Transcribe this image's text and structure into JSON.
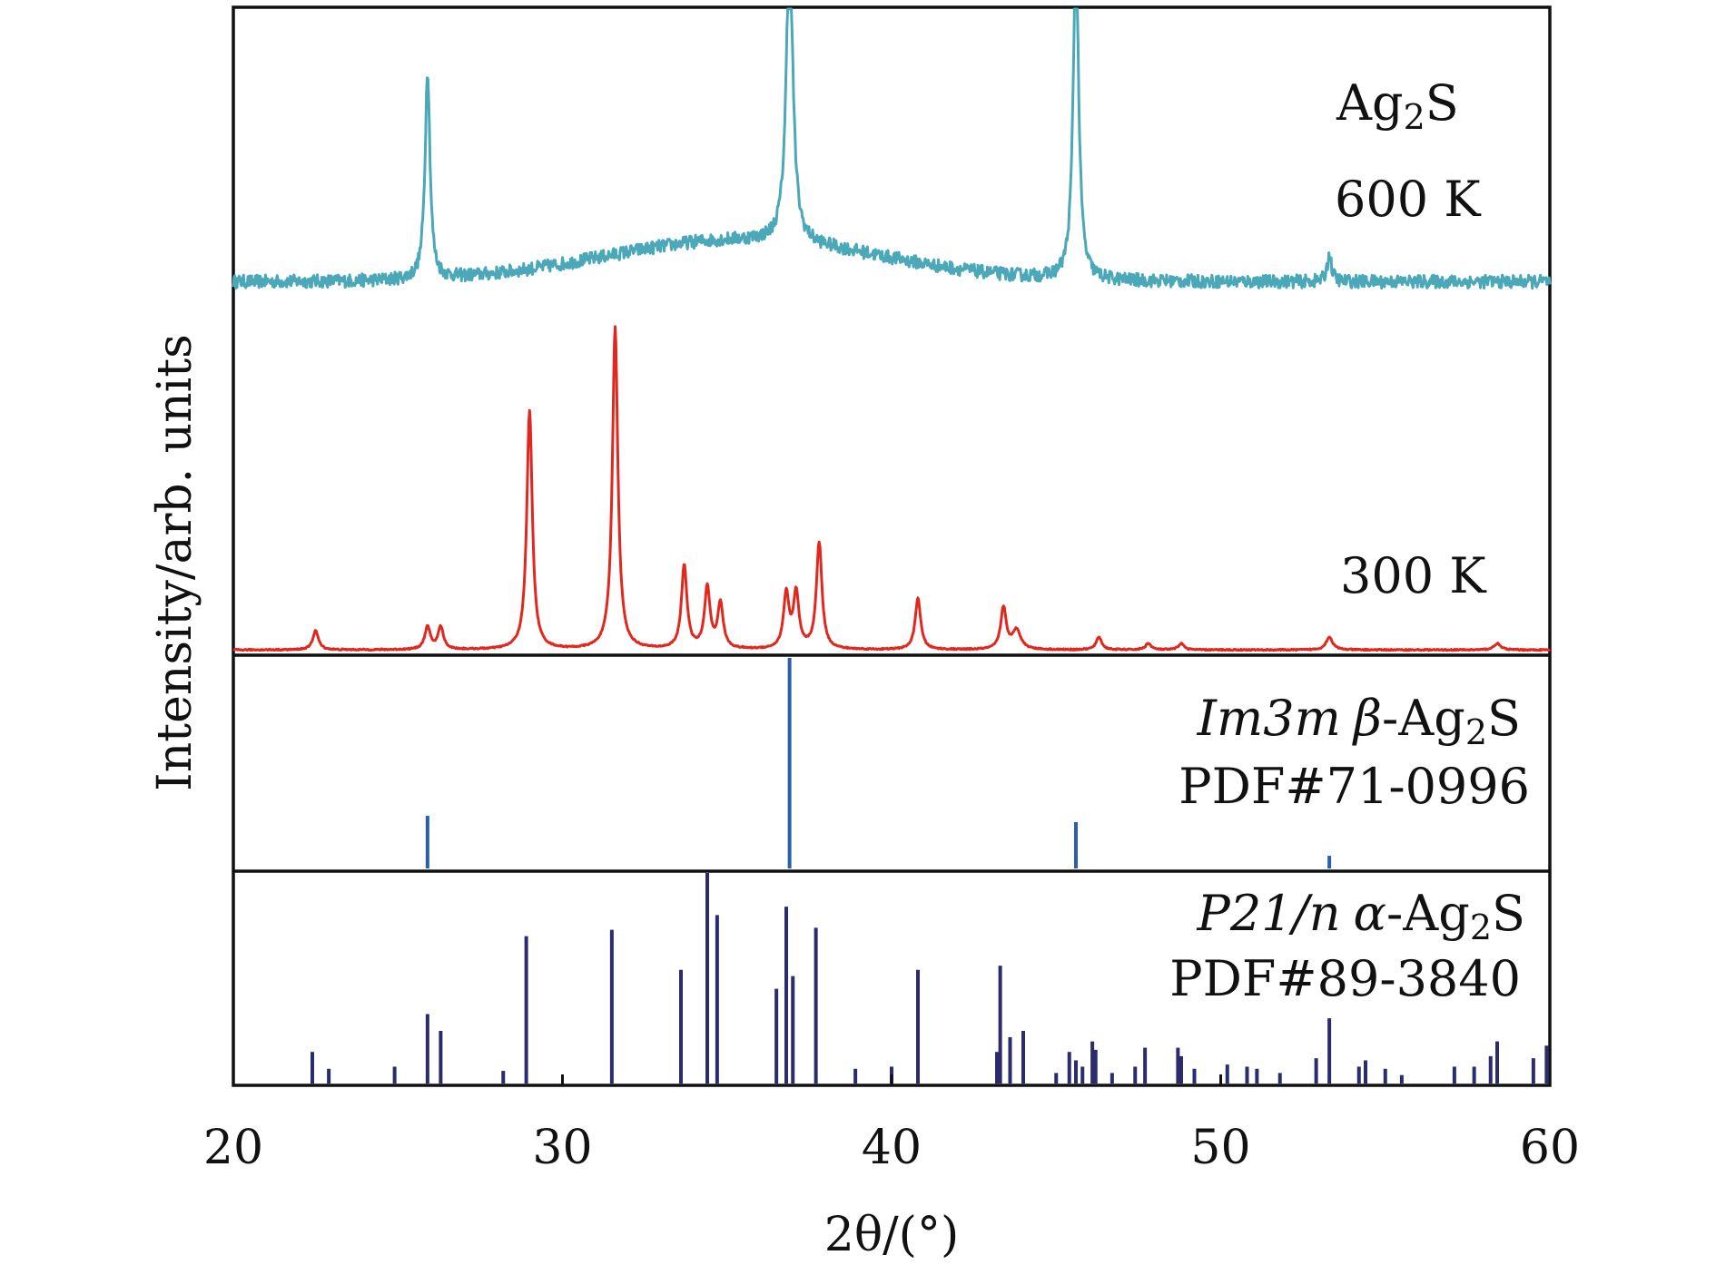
{
  "chart_data": {
    "type": "line",
    "xlabel": "2θ/(°)",
    "ylabel": "Intensity/arb. units",
    "xlim": [
      20,
      60
    ],
    "xticks": [
      20,
      30,
      40,
      50,
      60
    ],
    "grid": false,
    "colors": {
      "trace_600K": "#4aa8b8",
      "trace_300K": "#e0281e",
      "ref_beta": "#2a5fae",
      "ref_alpha": "#2b2b6e"
    },
    "annotations": {
      "compound_base": "Ag",
      "compound_sub": "2",
      "compound_end": "S",
      "temp_600": "600  K",
      "temp_300": "300  K",
      "beta_phase_ital": "Im3m",
      "beta_greek": "β",
      "beta_formula_base": "-Ag",
      "beta_formula_sub": "2",
      "beta_formula_end": "S",
      "beta_pdf": "PDF#71-0996",
      "alpha_phase_ital": "P21/n",
      "alpha_greek": "α",
      "alpha_formula_base": "-Ag",
      "alpha_formula_sub": "2",
      "alpha_formula_end": "S",
      "alpha_pdf": "PDF#89-3840"
    },
    "series": [
      {
        "name": "600  K",
        "kind": "trace",
        "baseline": 0.12,
        "noise": 0.022,
        "humps": [
          [
            35.5,
            0.14,
            4.2
          ]
        ],
        "peaks": [
          [
            25.9,
            0.7,
            0.09
          ],
          [
            36.9,
            1.0,
            0.12
          ],
          [
            45.6,
            1.11,
            0.1
          ],
          [
            53.3,
            0.09,
            0.08
          ]
        ]
      },
      {
        "name": "300  K",
        "kind": "trace",
        "baseline": 0.005,
        "noise": 0.002,
        "peaks": [
          [
            22.5,
            0.06,
            0.1
          ],
          [
            25.9,
            0.07,
            0.1
          ],
          [
            26.3,
            0.07,
            0.1
          ],
          [
            29.0,
            0.74,
            0.1
          ],
          [
            31.6,
            1.0,
            0.1
          ],
          [
            33.7,
            0.26,
            0.1
          ],
          [
            34.4,
            0.19,
            0.1
          ],
          [
            34.8,
            0.14,
            0.1
          ],
          [
            36.8,
            0.17,
            0.1
          ],
          [
            37.1,
            0.17,
            0.1
          ],
          [
            37.8,
            0.33,
            0.1
          ],
          [
            40.8,
            0.16,
            0.1
          ],
          [
            43.4,
            0.13,
            0.1
          ],
          [
            43.8,
            0.06,
            0.15
          ],
          [
            46.3,
            0.04,
            0.1
          ],
          [
            47.8,
            0.02,
            0.1
          ],
          [
            48.8,
            0.02,
            0.1
          ],
          [
            53.3,
            0.04,
            0.12
          ],
          [
            58.4,
            0.02,
            0.12
          ]
        ]
      },
      {
        "name": "Im3m β-Ag2S PDF#71-0996",
        "kind": "stick",
        "positions": [
          25.9,
          36.9,
          45.6,
          53.3
        ],
        "intensities": [
          0.25,
          1.0,
          0.22,
          0.06
        ]
      },
      {
        "name": "P21/n α-Ag2S PDF#89-3840",
        "kind": "stick",
        "positions": [
          22.4,
          22.9,
          24.9,
          25.9,
          26.3,
          28.2,
          28.9,
          31.5,
          33.6,
          34.4,
          34.7,
          36.5,
          36.8,
          37.0,
          37.7,
          38.9,
          40.0,
          40.8,
          43.2,
          43.3,
          43.6,
          44.0,
          45.0,
          45.4,
          45.6,
          45.8,
          46.1,
          46.2,
          46.7,
          47.4,
          47.7,
          48.7,
          48.8,
          49.2,
          50.2,
          50.8,
          51.1,
          51.8,
          52.9,
          53.3,
          54.2,
          54.4,
          55.0,
          55.5,
          57.1,
          57.7,
          58.2,
          58.4,
          59.5,
          59.9
        ],
        "intensities": [
          0.15,
          0.07,
          0.08,
          0.33,
          0.25,
          0.06,
          0.7,
          0.73,
          0.54,
          1.0,
          0.8,
          0.45,
          0.84,
          0.51,
          0.74,
          0.07,
          0.08,
          0.54,
          0.15,
          0.56,
          0.22,
          0.25,
          0.05,
          0.15,
          0.11,
          0.08,
          0.2,
          0.16,
          0.05,
          0.08,
          0.17,
          0.17,
          0.13,
          0.07,
          0.09,
          0.08,
          0.07,
          0.05,
          0.12,
          0.31,
          0.08,
          0.11,
          0.07,
          0.04,
          0.08,
          0.08,
          0.13,
          0.2,
          0.12,
          0.18
        ]
      }
    ]
  }
}
